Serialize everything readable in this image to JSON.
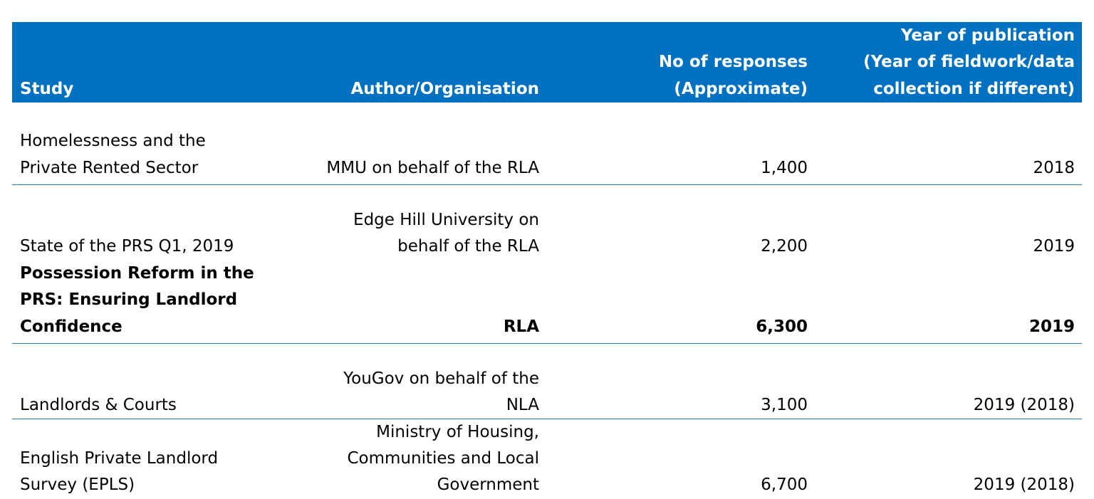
{
  "header": {
    "study": "Study",
    "author": "Author/Organisation",
    "responses": [
      "No of responses",
      "(Approximate)"
    ],
    "year": [
      "Year of publication",
      "(Year of fieldwork/data",
      "collection if different)"
    ]
  },
  "rows": [
    {
      "study": [
        "Homelessness and the",
        "Private Rented Sector"
      ],
      "author": [
        "MMU on behalf of the RLA"
      ],
      "responses": "1,400",
      "year": "2018",
      "bold": false
    },
    {
      "study": [
        "State of the PRS Q1, 2019"
      ],
      "author": [
        "Edge Hill University on",
        "behalf of the RLA"
      ],
      "responses": "2,200",
      "year": "2019",
      "bold": false
    },
    {
      "study": [
        "Possession Reform in the",
        "PRS: Ensuring Landlord",
        "Confidence"
      ],
      "author": [
        "RLA"
      ],
      "responses": "6,300",
      "year": "2019",
      "bold": true
    },
    {
      "study": [
        "Landlords & Courts"
      ],
      "author": [
        "YouGov on behalf of the",
        "NLA"
      ],
      "responses": "3,100",
      "year": "2019 (2018)",
      "bold": false
    },
    {
      "study": [
        "English Private Landlord",
        "Survey (EPLS)"
      ],
      "author": [
        "Ministry of Housing,",
        "Communities and Local",
        "Government"
      ],
      "responses": "6,700",
      "year": "2019 (2018)",
      "bold": false
    }
  ],
  "colors": {
    "header_bg": "#0070C0",
    "header_text": "#FFFFFF",
    "rule": "#2E75B6"
  }
}
